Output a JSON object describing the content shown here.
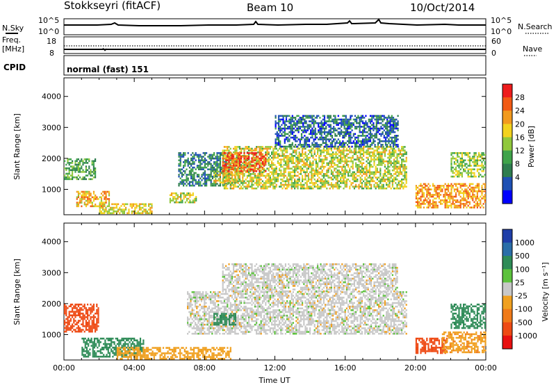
{
  "header": {
    "station": "Stokkseyri (fitACF)",
    "beam": "Beam 10",
    "date": "10/Oct/2014"
  },
  "summary_panels": {
    "nsky_label": "N.Sky",
    "nsearch_label": "N.Search",
    "noise_ticks": [
      "10^5",
      "10^0"
    ],
    "freq_label_1": "Freq.",
    "freq_label_2": "[MHz]",
    "freq_ticks": [
      "18",
      "8"
    ],
    "nave_label": "Nave",
    "nave_ticks": [
      "60",
      "0"
    ],
    "cpid_label": "CPID",
    "cpid_text": "normal (fast) 151"
  },
  "colors": {
    "power": [
      "#0000ff",
      "#1e50b4",
      "#2e7d4f",
      "#3fa34a",
      "#90c83c",
      "#f2d21e",
      "#f29a1e",
      "#f25a14",
      "#ee1c1c"
    ],
    "velocity": [
      "#1f3ea8",
      "#2a6ea8",
      "#2e8b57",
      "#5cc23c",
      "#c8c8c8",
      "#f0a020",
      "#f07a18",
      "#ee4a14",
      "#e81010"
    ],
    "frame": "#000000"
  },
  "chart_data": [
    {
      "type": "heatmap",
      "name": "power",
      "title": "",
      "xlabel": "",
      "ylabel": "Slant Range [km]",
      "xlim": [
        "00:00",
        "24:00"
      ],
      "ylim": [
        180,
        4600
      ],
      "yticks": [
        "1000",
        "2000",
        "3000",
        "4000"
      ],
      "colorbar": {
        "label": "Power [dB]",
        "ticks": [
          "4",
          "8",
          "12",
          "16",
          "20",
          "24",
          "28"
        ]
      },
      "echo_regions": [
        {
          "t0": 0.0,
          "t1": 1.8,
          "r0": 1300,
          "r1": 2000,
          "power_db": 12
        },
        {
          "t0": 0.7,
          "t1": 2.6,
          "r0": 450,
          "r1": 950,
          "power_db": 22
        },
        {
          "t0": 2.0,
          "t1": 5.0,
          "r0": 200,
          "r1": 550,
          "power_db": 20
        },
        {
          "t0": 6.0,
          "t1": 7.5,
          "r0": 550,
          "r1": 900,
          "power_db": 18
        },
        {
          "t0": 6.5,
          "t1": 9.5,
          "r0": 1100,
          "r1": 2200,
          "power_db": 8
        },
        {
          "t0": 8.5,
          "t1": 10.0,
          "r0": 1200,
          "r1": 1600,
          "power_db": 20
        },
        {
          "t0": 9.0,
          "t1": 19.5,
          "r0": 1000,
          "r1": 2400,
          "power_db": 18
        },
        {
          "t0": 9.0,
          "t1": 11.5,
          "r0": 1600,
          "r1": 2200,
          "power_db": 28
        },
        {
          "t0": 12.0,
          "t1": 19.0,
          "r0": 2400,
          "r1": 3400,
          "power_db": 6
        },
        {
          "t0": 20.0,
          "t1": 24.0,
          "r0": 400,
          "r1": 1200,
          "power_db": 24
        },
        {
          "t0": 22.0,
          "t1": 24.0,
          "r0": 1400,
          "r1": 2200,
          "power_db": 16
        }
      ]
    },
    {
      "type": "heatmap",
      "name": "velocity",
      "title": "",
      "xlabel": "Time UT",
      "ylabel": "Slant Range [km]",
      "xlim": [
        "00:00",
        "24:00"
      ],
      "ylim": [
        180,
        4600
      ],
      "xticks": [
        "00:00",
        "04:00",
        "08:00",
        "12:00",
        "16:00",
        "20:00",
        "00:00"
      ],
      "yticks": [
        "1000",
        "2000",
        "3000",
        "4000"
      ],
      "colorbar": {
        "label": "Velocity [m s⁻¹]",
        "ticks": [
          "1000",
          "500",
          "100",
          "25",
          "-25",
          "-100",
          "-500",
          "-1000"
        ]
      },
      "echo_regions": [
        {
          "t0": 0.0,
          "t1": 2.0,
          "r0": 1100,
          "r1": 2000,
          "velocity_ms": -700
        },
        {
          "t0": 1.0,
          "t1": 4.5,
          "r0": 300,
          "r1": 900,
          "velocity_ms": 200
        },
        {
          "t0": 3.0,
          "t1": 9.5,
          "r0": 200,
          "r1": 600,
          "velocity_ms": -60
        },
        {
          "t0": 7.0,
          "t1": 19.5,
          "r0": 1000,
          "r1": 2400,
          "velocity_ms": 0
        },
        {
          "t0": 8.5,
          "t1": 9.8,
          "r0": 1300,
          "r1": 1700,
          "velocity_ms": 200
        },
        {
          "t0": 9.0,
          "t1": 19.0,
          "r0": 2400,
          "r1": 3300,
          "velocity_ms": 0
        },
        {
          "t0": 20.0,
          "t1": 21.8,
          "r0": 400,
          "r1": 900,
          "velocity_ms": -700
        },
        {
          "t0": 21.5,
          "t1": 24.0,
          "r0": 400,
          "r1": 1100,
          "velocity_ms": -80
        },
        {
          "t0": 22.0,
          "t1": 24.0,
          "r0": 1200,
          "r1": 2000,
          "velocity_ms": 200
        }
      ]
    }
  ]
}
